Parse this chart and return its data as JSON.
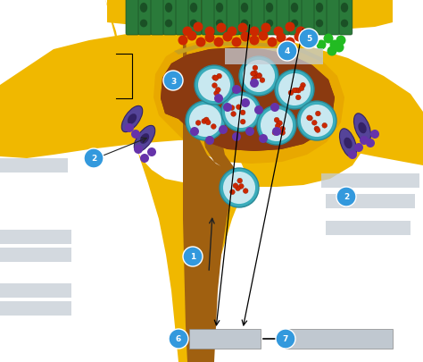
{
  "figsize": [
    4.74,
    4.06
  ],
  "dpi": 100,
  "bg_color": "#ffffff",
  "golden_outer": "#E8A800",
  "golden_bright": "#FFD700",
  "golden_mid": "#F0B800",
  "terminal_inner": "#8B3A10",
  "vesicle_ring": "#3AACBB",
  "vesicle_fill": "#B8E0E8",
  "vesicle_dot": "#CC2800",
  "ca_ion_color": "#6633AA",
  "ca_channel_color": "#44228A",
  "receptor_color": "#2A7A3A",
  "receptor_dark": "#1A5025",
  "red_dot_color": "#CC2800",
  "green_dot_color": "#22BB22",
  "label_bg": "#C5CDD5",
  "circle_color": "#3399DD",
  "arrow_color": "#111111",
  "box_color": "#C0C8D0"
}
